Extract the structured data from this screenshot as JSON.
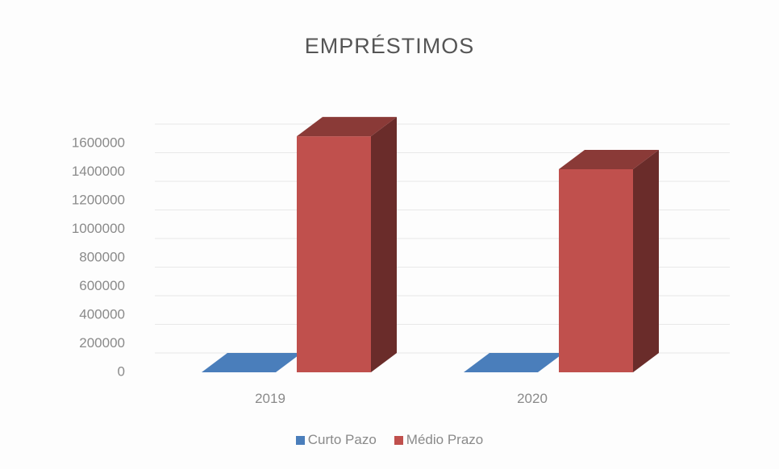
{
  "chart_data": {
    "type": "bar",
    "title": "EMPRÉSTIMOS",
    "categories": [
      "2019",
      "2020"
    ],
    "series": [
      {
        "name": "Curto Pazo",
        "values": [
          0,
          0
        ],
        "color": "#4a7ebb"
      },
      {
        "name": "Médio Prazo",
        "values": [
          1650000,
          1420000
        ],
        "color": "#c0504d"
      }
    ],
    "ylim": [
      0,
      1600000
    ],
    "yticks": [
      "0",
      "200000",
      "400000",
      "600000",
      "800000",
      "1000000",
      "1200000",
      "1400000",
      "1600000"
    ],
    "grid": true,
    "legend": "bottom",
    "style": "3d-column"
  }
}
